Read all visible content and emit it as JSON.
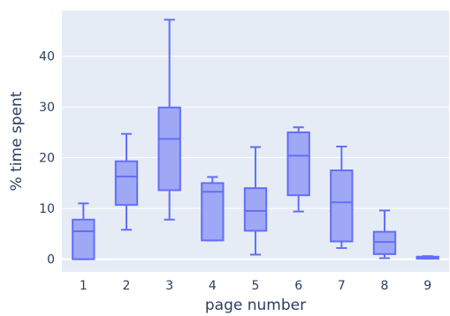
{
  "chart_data": {
    "type": "box",
    "xlabel": "page number",
    "ylabel": "% time spent",
    "ylim": [
      -2.5,
      49
    ],
    "yticks": [
      0,
      10,
      20,
      30,
      40
    ],
    "grid": true,
    "colors": {
      "plot_bg": "#e5ecf6",
      "grid": "#ffffff",
      "box_fill": "#9fa8f5",
      "box_line": "#636efa",
      "text": "#2a3f5f"
    },
    "categories": [
      "1",
      "2",
      "3",
      "4",
      "5",
      "6",
      "7",
      "8",
      "9"
    ],
    "boxes": [
      {
        "category": "1",
        "min": 0.0,
        "q1": 0.0,
        "median": 5.5,
        "q3": 7.8,
        "max": 11.0
      },
      {
        "category": "2",
        "min": 5.8,
        "q1": 10.7,
        "median": 16.3,
        "q3": 19.3,
        "max": 24.7
      },
      {
        "category": "3",
        "min": 7.8,
        "q1": 13.6,
        "median": 23.7,
        "q3": 29.9,
        "max": 47.2
      },
      {
        "category": "4",
        "min": 3.7,
        "q1": 3.7,
        "median": 13.3,
        "q3": 15.0,
        "max": 16.2
      },
      {
        "category": "5",
        "min": 0.9,
        "q1": 5.6,
        "median": 9.5,
        "q3": 14.0,
        "max": 22.1
      },
      {
        "category": "6",
        "min": 9.4,
        "q1": 12.6,
        "median": 20.4,
        "q3": 25.0,
        "max": 26.0
      },
      {
        "category": "7",
        "min": 2.2,
        "q1": 3.5,
        "median": 11.2,
        "q3": 17.5,
        "max": 22.2
      },
      {
        "category": "8",
        "min": 0.2,
        "q1": 1.0,
        "median": 3.4,
        "q3": 5.4,
        "max": 9.6
      },
      {
        "category": "9",
        "min": 0.1,
        "q1": 0.1,
        "median": 0.3,
        "q3": 0.5,
        "max": 0.6
      }
    ]
  }
}
